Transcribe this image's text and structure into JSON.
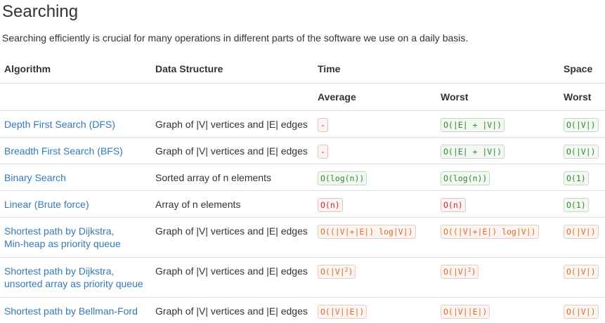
{
  "section": {
    "title": "Searching",
    "intro": "Searching efficiently is crucial for many operations in different parts of the software we use on a daily basis."
  },
  "table": {
    "headers": {
      "algorithm": "Algorithm",
      "data_structure": "Data Structure",
      "time": "Time",
      "space": "Space",
      "average": "Average",
      "worst": "Worst",
      "space_worst": "Worst"
    },
    "rows": [
      {
        "algorithm": "Depth First Search (DFS)",
        "data_structure": "Graph of |V| vertices and |E| edges",
        "average": {
          "text": "-",
          "rating": "red"
        },
        "worst": {
          "text": "O(|E| + |V|)",
          "rating": "green"
        },
        "space": {
          "text": "O(|V|)",
          "rating": "green"
        }
      },
      {
        "algorithm": "Breadth First Search (BFS)",
        "data_structure": "Graph of |V| vertices and |E| edges",
        "average": {
          "text": "-",
          "rating": "red"
        },
        "worst": {
          "text": "O(|E| + |V|)",
          "rating": "green"
        },
        "space": {
          "text": "O(|V|)",
          "rating": "green"
        }
      },
      {
        "algorithm": "Binary Search",
        "data_structure": "Sorted array of n elements",
        "average": {
          "text": "O(log(n))",
          "rating": "green"
        },
        "worst": {
          "text": "O(log(n))",
          "rating": "green"
        },
        "space": {
          "text": "O(1)",
          "rating": "green"
        }
      },
      {
        "algorithm": "Linear (Brute force)",
        "data_structure": "Array of n elements",
        "average": {
          "text": "O(n)",
          "rating": "red"
        },
        "worst": {
          "text": "O(n)",
          "rating": "red"
        },
        "space": {
          "text": "O(1)",
          "rating": "green"
        }
      },
      {
        "algorithm_line1": "Shortest path by Dijkstra,",
        "algorithm_line2": "Min-heap as priority queue",
        "data_structure": "Graph of |V| vertices and |E| edges",
        "average": {
          "text": "O((|V|+|E|) log|V|)",
          "rating": "orange"
        },
        "worst": {
          "text": "O((|V|+|E|) log|V|)",
          "rating": "orange"
        },
        "space": {
          "text": "O(|V|)",
          "rating": "orange"
        }
      },
      {
        "algorithm_line1": "Shortest path by Dijkstra,",
        "algorithm_line2": "unsorted array as priority queue",
        "data_structure": "Graph of |V| vertices and |E| edges",
        "average": {
          "text": "O(|V|",
          "sup": "2",
          "text_end": ")",
          "rating": "orange"
        },
        "worst": {
          "text": "O(|V|",
          "sup": "2",
          "text_end": ")",
          "rating": "orange"
        },
        "space": {
          "text": "O(|V|)",
          "rating": "orange"
        }
      },
      {
        "algorithm": "Shortest path by Bellman-Ford",
        "data_structure": "Graph of |V| vertices and |E| edges",
        "average": {
          "text": "O(|V||E|)",
          "rating": "orange"
        },
        "worst": {
          "text": "O(|V||E|)",
          "rating": "orange"
        },
        "space": {
          "text": "O(|V|)",
          "rating": "orange"
        }
      }
    ]
  },
  "colors": {
    "link": "#337ab7",
    "green": "#2e8b2e",
    "orange": "#e4692b",
    "red": "#c9302c",
    "border": "#dddddd"
  }
}
